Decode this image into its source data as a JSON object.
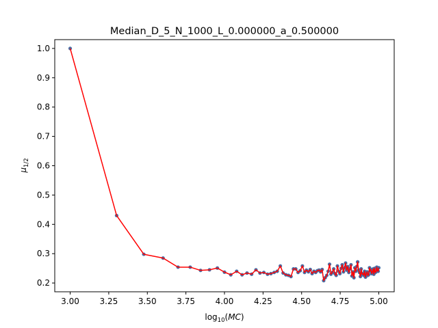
{
  "chart_data": {
    "type": "line",
    "title": "Median_D_5_N_1000_L_0.000000_a_0.500000",
    "xlabel": "log₁₀(MC)",
    "ylabel": "μ₁/₂",
    "xlim": [
      2.9,
      5.1
    ],
    "ylim": [
      0.17,
      1.03
    ],
    "xticks": [
      3.0,
      3.25,
      3.5,
      3.75,
      4.0,
      4.25,
      4.5,
      4.75,
      5.0
    ],
    "xtick_labels": [
      "3.00",
      "3.25",
      "3.50",
      "3.75",
      "4.00",
      "4.25",
      "4.50",
      "4.75",
      "5.00"
    ],
    "yticks": [
      0.2,
      0.3,
      0.4,
      0.5,
      0.6,
      0.7,
      0.8,
      0.9,
      1.0
    ],
    "ytick_labels": [
      "0.2",
      "0.3",
      "0.4",
      "0.5",
      "0.6",
      "0.7",
      "0.8",
      "0.9",
      "1.0"
    ],
    "grid": false,
    "series": [
      {
        "marker_color": "#4a6fa5",
        "line_color": "#ff0000",
        "x": [
          3.0,
          3.301,
          3.477,
          3.602,
          3.699,
          3.778,
          3.845,
          3.903,
          3.954,
          4.0,
          4.041,
          4.079,
          4.114,
          4.146,
          4.176,
          4.204,
          4.23,
          4.255,
          4.279,
          4.301,
          4.322,
          4.342,
          4.362,
          4.38,
          4.398,
          4.415,
          4.431,
          4.447,
          4.462,
          4.477,
          4.491,
          4.505,
          4.519,
          4.531,
          4.544,
          4.556,
          4.568,
          4.58,
          4.591,
          4.602,
          4.613,
          4.623,
          4.633,
          4.643,
          4.653,
          4.663,
          4.672,
          4.681,
          4.69,
          4.699,
          4.708,
          4.716,
          4.724,
          4.732,
          4.74,
          4.748,
          4.756,
          4.763,
          4.771,
          4.778,
          4.785,
          4.792,
          4.799,
          4.806,
          4.813,
          4.82,
          4.826,
          4.833,
          4.839,
          4.845,
          4.851,
          4.857,
          4.863,
          4.869,
          4.875,
          4.881,
          4.886,
          4.892,
          4.898,
          4.903,
          4.908,
          4.914,
          4.919,
          4.924,
          4.929,
          4.934,
          4.94,
          4.944,
          4.949,
          4.954,
          4.959,
          4.964,
          4.968,
          4.973,
          4.978,
          4.982,
          4.987,
          4.991,
          4.996,
          5.0
        ],
        "y": [
          1.0,
          0.43,
          0.298,
          0.285,
          0.254,
          0.254,
          0.243,
          0.245,
          0.251,
          0.237,
          0.228,
          0.24,
          0.228,
          0.234,
          0.23,
          0.245,
          0.234,
          0.236,
          0.23,
          0.232,
          0.236,
          0.24,
          0.258,
          0.234,
          0.228,
          0.226,
          0.222,
          0.248,
          0.248,
          0.236,
          0.242,
          0.258,
          0.236,
          0.244,
          0.238,
          0.246,
          0.232,
          0.24,
          0.236,
          0.242,
          0.244,
          0.238,
          0.246,
          0.208,
          0.218,
          0.226,
          0.24,
          0.264,
          0.23,
          0.236,
          0.248,
          0.232,
          0.226,
          0.258,
          0.24,
          0.232,
          0.25,
          0.262,
          0.238,
          0.252,
          0.268,
          0.244,
          0.256,
          0.236,
          0.248,
          0.262,
          0.224,
          0.238,
          0.218,
          0.252,
          0.24,
          0.256,
          0.272,
          0.244,
          0.236,
          0.222,
          0.248,
          0.23,
          0.232,
          0.226,
          0.24,
          0.22,
          0.232,
          0.238,
          0.226,
          0.228,
          0.252,
          0.24,
          0.246,
          0.232,
          0.238,
          0.248,
          0.23,
          0.25,
          0.236,
          0.238,
          0.254,
          0.242,
          0.24,
          0.252
        ]
      }
    ]
  }
}
